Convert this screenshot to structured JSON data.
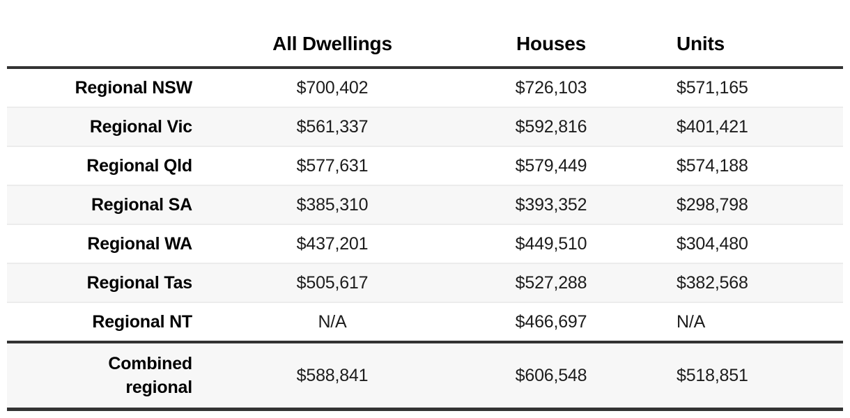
{
  "chart_data": {
    "type": "table",
    "title": "",
    "columns": [
      "",
      "All Dwellings",
      "Houses",
      "Units"
    ],
    "rows": [
      [
        "Regional NSW",
        "$700,402",
        "$726,103",
        "$571,165"
      ],
      [
        "Regional Vic",
        "$561,337",
        "$592,816",
        "$401,421"
      ],
      [
        "Regional Qld",
        "$577,631",
        "$579,449",
        "$574,188"
      ],
      [
        "Regional SA",
        "$385,310",
        "$393,352",
        "$298,798"
      ],
      [
        "Regional WA",
        "$437,201",
        "$449,510",
        "$304,480"
      ],
      [
        "Regional Tas",
        "$505,617",
        "$527,288",
        "$382,568"
      ],
      [
        "Regional NT",
        "N/A",
        "$466,697",
        "N/A"
      ],
      [
        "Combined regional",
        "$588,841",
        "$606,548",
        "$518,851"
      ]
    ]
  },
  "table": {
    "headers": {
      "corner": "",
      "all_dwellings": "All Dwellings",
      "houses": "Houses",
      "units": "Units"
    },
    "rows": [
      {
        "label": "Regional NSW",
        "all_dwellings": "$700,402",
        "houses": "$726,103",
        "units": "$571,165"
      },
      {
        "label": "Regional Vic",
        "all_dwellings": "$561,337",
        "houses": "$592,816",
        "units": "$401,421"
      },
      {
        "label": "Regional Qld",
        "all_dwellings": "$577,631",
        "houses": "$579,449",
        "units": "$574,188"
      },
      {
        "label": "Regional SA",
        "all_dwellings": "$385,310",
        "houses": "$393,352",
        "units": "$298,798"
      },
      {
        "label": "Regional WA",
        "all_dwellings": "$437,201",
        "houses": "$449,510",
        "units": "$304,480"
      },
      {
        "label": "Regional Tas",
        "all_dwellings": "$505,617",
        "houses": "$527,288",
        "units": "$382,568"
      },
      {
        "label": "Regional NT",
        "all_dwellings": "N/A",
        "houses": "$466,697",
        "units": "N/A"
      }
    ],
    "total": {
      "label": "Combined regional",
      "all_dwellings": "$588,841",
      "houses": "$606,548",
      "units": "$518,851"
    },
    "colors": {
      "rule_dark": "#333333",
      "row_alt_bg": "#f7f7f7",
      "row_separator": "#ececec",
      "text": "#000000"
    }
  }
}
